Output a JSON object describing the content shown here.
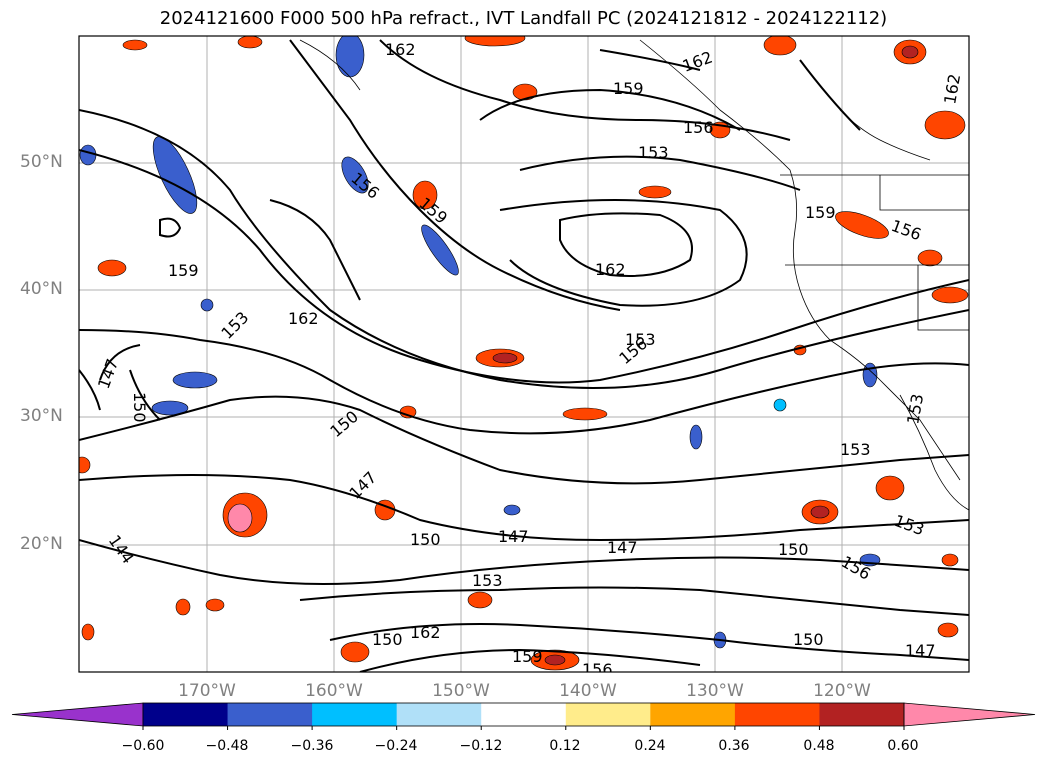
{
  "title": "2024121600 F000 500 hPa refract., IVT Landfall PC (2024121812 - 2024122112)",
  "latitude_labels": [
    "50°N",
    "40°N",
    "30°N",
    "20°N"
  ],
  "longitude_labels": [
    "170°W",
    "160°W",
    "150°W",
    "140°W",
    "130°W",
    "120°W"
  ],
  "contour_labels": [
    "162",
    "162",
    "159",
    "153",
    "156",
    "159",
    "156",
    "162",
    "159",
    "162",
    "153",
    "156",
    "147",
    "150",
    "150",
    "147",
    "150",
    "147",
    "147",
    "150",
    "153",
    "144",
    "153",
    "153",
    "150",
    "153",
    "156",
    "162",
    "159",
    "156",
    "150",
    "147",
    "162",
    "156",
    "159",
    "153"
  ],
  "colorbar": {
    "tick_labels": [
      "−0.60",
      "−0.48",
      "−0.36",
      "−0.24",
      "−0.12",
      "0.12",
      "0.24",
      "0.36",
      "0.48",
      "0.60"
    ],
    "colors": [
      "#9932cc",
      "#00008b",
      "#3a5fcd",
      "#00bfff",
      "#b0e0f8",
      "#ffffff",
      "#ffec8b",
      "#ffa500",
      "#ff4500",
      "#b22222",
      "#ff88aa"
    ]
  }
}
